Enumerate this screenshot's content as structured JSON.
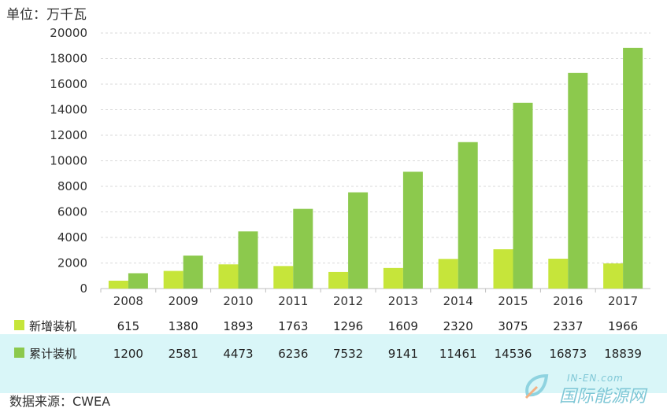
{
  "unit_label": "单位：万千瓦",
  "source_label": "数据来源：CWEA",
  "watermark": {
    "top": "IN-EN.com",
    "main": "国际能源网"
  },
  "colors": {
    "new": "#c6e53a",
    "cumulative": "#8cc94d",
    "grid": "#d9d9d9",
    "band": "#d9f6f8"
  },
  "chart_data": {
    "type": "bar",
    "categories": [
      "2008",
      "2009",
      "2010",
      "2011",
      "2012",
      "2013",
      "2014",
      "2015",
      "2016",
      "2017"
    ],
    "series": [
      {
        "name": "新增装机",
        "values": [
          615,
          1380,
          1893,
          1763,
          1296,
          1609,
          2320,
          3075,
          2337,
          1966
        ]
      },
      {
        "name": "累计装机",
        "values": [
          1200,
          2581,
          4473,
          6236,
          7532,
          9141,
          11461,
          14536,
          16873,
          18839
        ]
      }
    ],
    "value_labels": [
      [
        "615",
        "1380",
        "1893",
        "1763",
        "1296",
        "1609",
        "2320",
        "3075",
        "2337",
        "1966"
      ],
      [
        "1200",
        "2581",
        "4473",
        "6236",
        "7532",
        "9141",
        "11461",
        "14536",
        "16873",
        "18839"
      ]
    ],
    "yticks": [
      0,
      2000,
      4000,
      6000,
      8000,
      10000,
      12000,
      14000,
      16000,
      18000,
      20000
    ],
    "ylim": [
      0,
      20000
    ],
    "grid": true,
    "legend": "data table below x-axis"
  }
}
